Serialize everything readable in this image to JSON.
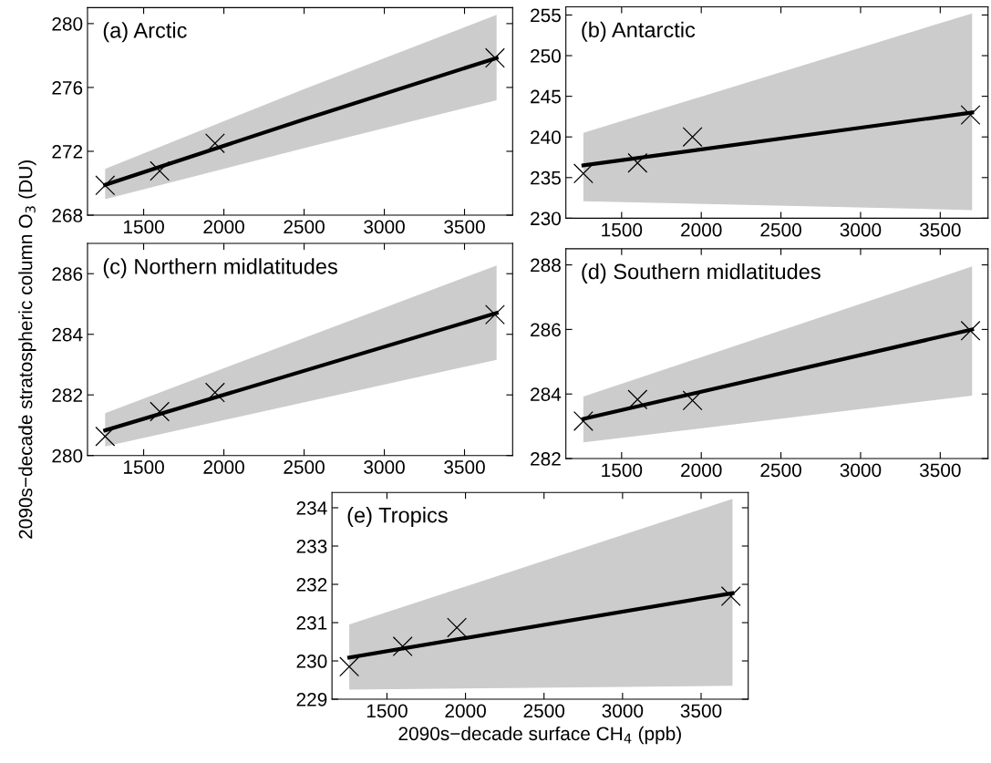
{
  "chart_data": [
    {
      "type": "line",
      "title": "(a) Arctic",
      "xlim": [
        1150,
        3800
      ],
      "xticks": [
        1500,
        2000,
        2500,
        3000,
        3500
      ],
      "ylim": [
        268,
        281
      ],
      "yticks": [
        268,
        272,
        276,
        280
      ],
      "grid": false,
      "series": [
        {
          "color": "#000000",
          "line_style": "solid",
          "x": [
            1260,
            2500,
            3700
          ],
          "values": [
            269.9,
            274.0,
            277.85
          ],
          "lower": [
            269.0,
            272.2,
            275.2
          ],
          "upper": [
            270.9,
            275.9,
            280.55
          ]
        },
        {
          "type": "scatter",
          "color": "#000000",
          "marker": "cross",
          "x": [
            1260,
            1600,
            1945,
            3690
          ],
          "values": [
            269.87,
            270.77,
            272.5,
            277.85
          ]
        }
      ]
    },
    {
      "type": "line",
      "title": "(b) Antarctic",
      "xlim": [
        1150,
        3800
      ],
      "xticks": [
        1500,
        2000,
        2500,
        3000,
        3500
      ],
      "ylim": [
        230,
        256
      ],
      "yticks": [
        230,
        235,
        240,
        245,
        250,
        255
      ],
      "grid": false,
      "series": [
        {
          "color": "#000000",
          "line_style": "solid",
          "x": [
            1260,
            3700
          ],
          "values": [
            236.5,
            243.0
          ],
          "lower": [
            232.1,
            231.0
          ],
          "upper": [
            240.5,
            255.2
          ]
        },
        {
          "type": "scatter",
          "color": "#000000",
          "marker": "cross",
          "x": [
            1260,
            1600,
            1945,
            3690
          ],
          "values": [
            235.5,
            236.8,
            240.0,
            242.7
          ]
        }
      ]
    },
    {
      "type": "line",
      "title": "(c) Northern midlatitudes",
      "ylabel": "2090s−decade stratospheric column O$_{3}$ (DU)",
      "xlim": [
        1150,
        3800
      ],
      "xticks": [
        1500,
        2000,
        2500,
        3000,
        3500
      ],
      "ylim": [
        280,
        287
      ],
      "yticks": [
        280,
        282,
        284,
        286
      ],
      "grid": false,
      "series": [
        {
          "color": "#000000",
          "line_style": "solid",
          "x": [
            1260,
            3700
          ],
          "values": [
            280.83,
            284.7
          ],
          "lower": [
            280.3,
            283.16
          ],
          "upper": [
            281.4,
            286.27
          ]
        },
        {
          "type": "scatter",
          "color": "#000000",
          "marker": "cross",
          "x": [
            1260,
            1600,
            1945,
            3690
          ],
          "values": [
            280.63,
            281.45,
            282.08,
            284.65
          ]
        }
      ]
    },
    {
      "type": "line",
      "title": "(d) Southern midlatitudes",
      "xlim": [
        1150,
        3800
      ],
      "xticks": [
        1500,
        2000,
        2500,
        3000,
        3500
      ],
      "ylim": [
        282,
        288.5
      ],
      "yticks": [
        282,
        284,
        286,
        288
      ],
      "grid": false,
      "series": [
        {
          "color": "#000000",
          "line_style": "solid",
          "x": [
            1260,
            3700
          ],
          "values": [
            283.23,
            286.0
          ],
          "lower": [
            282.5,
            283.95
          ],
          "upper": [
            283.92,
            287.95
          ]
        },
        {
          "type": "scatter",
          "color": "#000000",
          "marker": "cross",
          "x": [
            1260,
            1600,
            1945,
            3690
          ],
          "values": [
            283.16,
            283.83,
            283.8,
            285.96
          ]
        }
      ]
    },
    {
      "type": "line",
      "title": "(e) Tropics",
      "xlabel": "2090s−decade surface CH$_{4}$ (ppb)",
      "xlim": [
        1150,
        3800
      ],
      "xticks": [
        1500,
        2000,
        2500,
        3000,
        3500
      ],
      "ylim": [
        229,
        234.4
      ],
      "yticks": [
        229,
        230,
        231,
        232,
        233,
        234
      ],
      "grid": false,
      "series": [
        {
          "color": "#000000",
          "line_style": "solid",
          "x": [
            1260,
            3700
          ],
          "values": [
            230.09,
            231.77
          ],
          "lower": [
            229.25,
            229.35
          ],
          "upper": [
            230.95,
            234.23
          ]
        },
        {
          "type": "scatter",
          "color": "#000000",
          "marker": "cross",
          "x": [
            1260,
            1600,
            1945,
            3690
          ],
          "values": [
            229.85,
            230.38,
            230.87,
            231.69
          ]
        }
      ]
    }
  ]
}
